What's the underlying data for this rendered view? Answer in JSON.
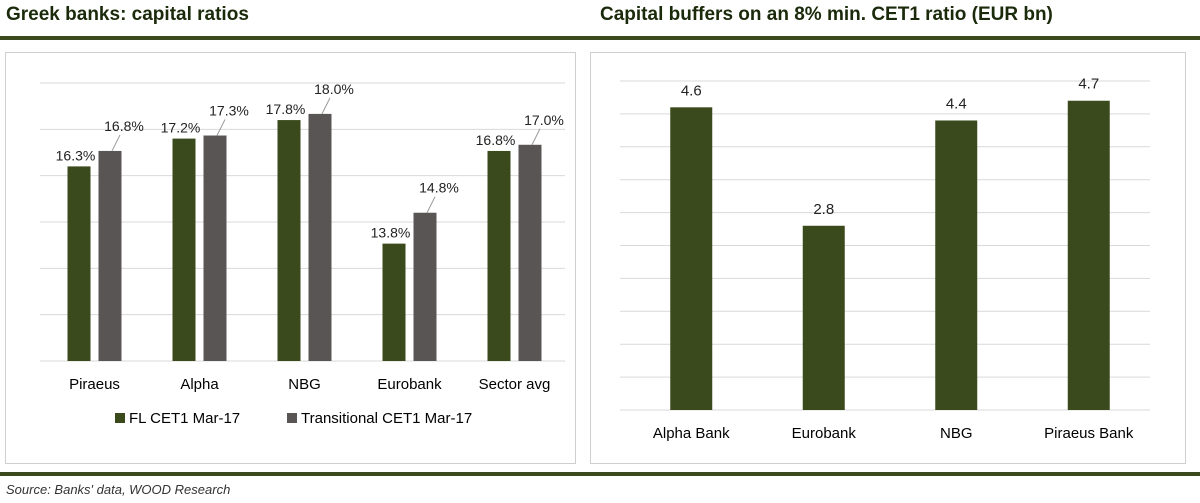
{
  "titles": {
    "left": "Greek banks: capital ratios",
    "right": "Capital buffers on an 8% min. CET1 ratio (EUR bn)"
  },
  "source": "Source: Banks' data, WOOD Research",
  "colors": {
    "green": "#3b4a1c",
    "grey": "#595555",
    "grid": "#d9d9d9"
  },
  "chart_data": [
    {
      "type": "bar",
      "title": "Greek banks: capital ratios",
      "categories": [
        "Piraeus",
        "Alpha",
        "NBG",
        "Eurobank",
        "Sector avg"
      ],
      "series": [
        {
          "name": "FL CET1 Mar-17",
          "values": [
            16.3,
            17.2,
            17.8,
            13.8,
            16.8
          ],
          "labels": [
            "16.3%",
            "17.2%",
            "17.8%",
            "13.8%",
            "16.8%"
          ]
        },
        {
          "name": "Transitional CET1 Mar-17",
          "values": [
            16.8,
            17.3,
            18.0,
            14.8,
            17.0
          ],
          "labels": [
            "16.8%",
            "17.3%",
            "18.0%",
            "14.8%",
            "17.0%"
          ]
        }
      ],
      "ylim": [
        10,
        19
      ],
      "grid": true,
      "legend": "bottom"
    },
    {
      "type": "bar",
      "title": "Capital buffers on an 8% min. CET1 ratio (EUR bn)",
      "categories": [
        "Alpha Bank",
        "Eurobank",
        "NBG",
        "Piraeus Bank"
      ],
      "values": [
        4.6,
        2.8,
        4.4,
        4.7
      ],
      "labels": [
        "4.6",
        "2.8",
        "4.4",
        "4.7"
      ],
      "ylim": [
        0,
        5.0
      ],
      "grid": true
    }
  ]
}
